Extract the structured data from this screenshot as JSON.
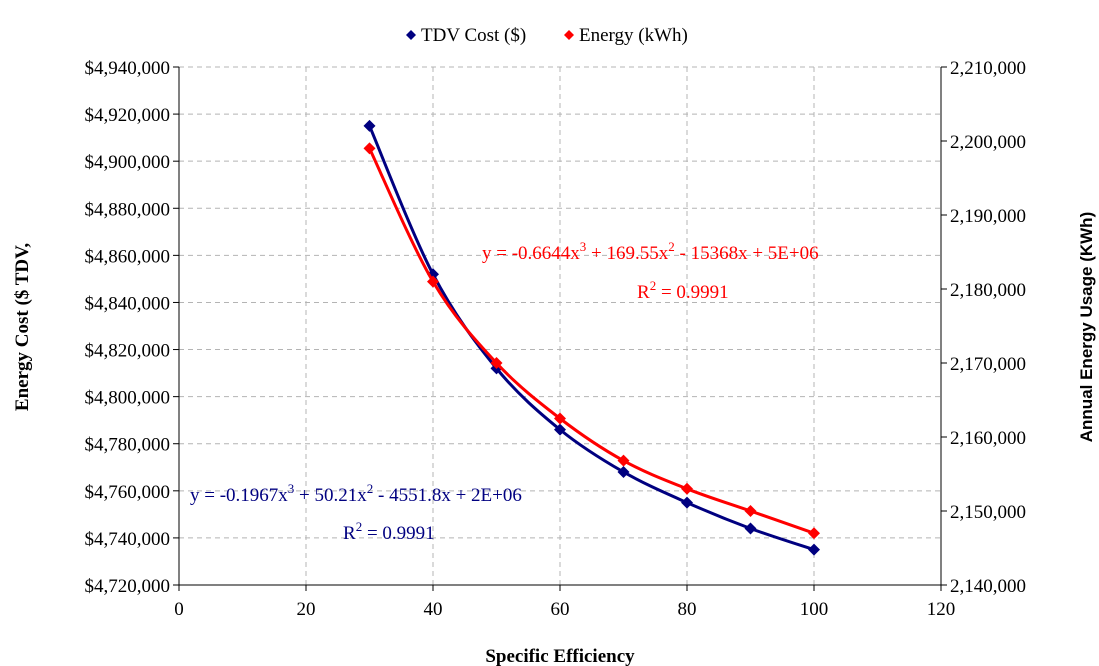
{
  "chart_data": {
    "type": "scatter",
    "xlabel": "Specific Efficiency",
    "ylabel_left": "Energy Cost ($ TDV,",
    "ylabel_right": "Annual Energy Usage (KWh)",
    "xlim": [
      0,
      120
    ],
    "ylim_left": [
      4720000,
      4940000
    ],
    "ylim_right": [
      2140000,
      2210000
    ],
    "grid": true,
    "legend_position": "top-center",
    "x_ticks": [
      "0",
      "20",
      "40",
      "60",
      "80",
      "100",
      "120"
    ],
    "y_ticks_left": [
      "$4,720,000",
      "$4,740,000",
      "$4,760,000",
      "$4,780,000",
      "$4,800,000",
      "$4,820,000",
      "$4,840,000",
      "$4,860,000",
      "$4,880,000",
      "$4,900,000",
      "$4,920,000",
      "$4,940,000"
    ],
    "y_ticks_right": [
      "2,140,000",
      "2,150,000",
      "2,160,000",
      "2,170,000",
      "2,180,000",
      "2,190,000",
      "2,200,000",
      "2,210,000"
    ],
    "series": [
      {
        "name": "TDV Cost ($)",
        "axis": "left",
        "color": "#000080",
        "marker": "diamond",
        "x": [
          30,
          40,
          50,
          60,
          70,
          80,
          90,
          100
        ],
        "y": [
          4915000,
          4852000,
          4812000,
          4786000,
          4768000,
          4755000,
          4744000,
          4735000
        ]
      },
      {
        "name": "Energy (kWh)",
        "axis": "right",
        "color": "#ff0000",
        "marker": "diamond",
        "x": [
          30,
          40,
          50,
          60,
          70,
          80,
          90,
          100
        ],
        "y": [
          2199000,
          2181000,
          2170000,
          2162500,
          2156800,
          2153000,
          2150000,
          2147000
        ]
      }
    ],
    "annotations": [
      {
        "series": "Energy (kWh)",
        "equation_parts": [
          "y = -0.6644x",
          "3",
          " + 169.55x",
          "2",
          " - 15368x + 5E+06"
        ],
        "r2_parts": [
          "R",
          "2",
          " = 0.9991"
        ],
        "color": "#ff0000"
      },
      {
        "series": "TDV Cost ($)",
        "equation_parts": [
          "y = -0.1967x",
          "3",
          " + 50.21x",
          "2",
          " - 4551.8x + 2E+06"
        ],
        "r2_parts": [
          "R",
          "2",
          " = 0.9991"
        ],
        "color": "#000080"
      }
    ]
  }
}
